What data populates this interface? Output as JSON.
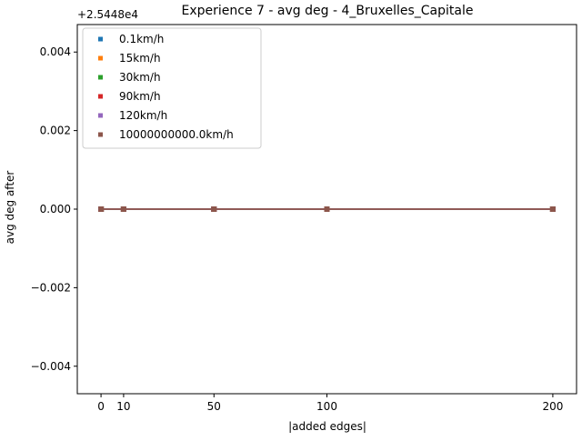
{
  "chart_data": {
    "type": "line",
    "title": "Experience 7 - avg deg - 4_Bruxelles_Capitale",
    "xlabel": "|added edges|",
    "ylabel": "avg deg after",
    "offset_label": "+2.5448e4",
    "x": [
      0,
      10,
      50,
      100,
      200
    ],
    "xlim": [
      -10.5,
      210.5
    ],
    "ylim": [
      -0.0047,
      0.0047
    ],
    "x_ticks": [
      {
        "value": 0,
        "label": "0"
      },
      {
        "value": 10,
        "label": "10"
      },
      {
        "value": 50,
        "label": "50"
      },
      {
        "value": 100,
        "label": "100"
      },
      {
        "value": 200,
        "label": "200"
      }
    ],
    "y_ticks": [
      {
        "value": 0.004,
        "label": "0.004"
      },
      {
        "value": 0.002,
        "label": "0.002"
      },
      {
        "value": 0.0,
        "label": "0.000"
      },
      {
        "value": -0.002,
        "label": "−0.002"
      },
      {
        "value": -0.004,
        "label": "−0.004"
      }
    ],
    "grid": false,
    "legend_position": "top-left",
    "series": [
      {
        "name": "0.1km/h",
        "color": "#1f77b4",
        "values": [
          0,
          0,
          0,
          0,
          0
        ]
      },
      {
        "name": "15km/h",
        "color": "#ff7f0e",
        "values": [
          0,
          0,
          0,
          0,
          0
        ]
      },
      {
        "name": "30km/h",
        "color": "#2ca02c",
        "values": [
          0,
          0,
          0,
          0,
          0
        ]
      },
      {
        "name": "90km/h",
        "color": "#d62728",
        "values": [
          0,
          0,
          0,
          0,
          0
        ]
      },
      {
        "name": "120km/h",
        "color": "#9467bd",
        "values": [
          0,
          0,
          0,
          0,
          0
        ]
      },
      {
        "name": "10000000000.0km/h",
        "color": "#8c564b",
        "values": [
          0,
          0,
          0,
          0,
          0
        ]
      }
    ]
  }
}
